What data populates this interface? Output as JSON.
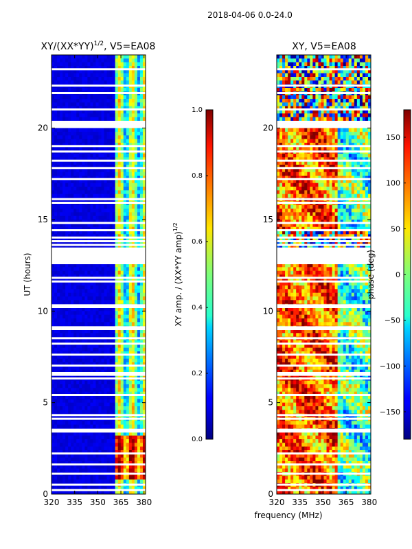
{
  "figure": {
    "suptitle": "2018-04-06 0.0-24.0",
    "xlabel_shared": "frequency (MHz)"
  },
  "chart_data": [
    {
      "type": "heatmap",
      "title_prefix": "XY/(XX*YY)",
      "title_exponent": "1/2",
      "title_suffix": ", V5=EA08",
      "ylabel": "UT (hours)",
      "x_range": [
        320,
        381
      ],
      "x_ticks": [
        320,
        335,
        350,
        365,
        380
      ],
      "y_range": [
        0,
        24
      ],
      "y_ticks": [
        0,
        5,
        10,
        15,
        20
      ],
      "colorbar": {
        "label_prefix": "XY amp. / (XX*YY amp)",
        "label_exponent": "1/2",
        "range": [
          0.0,
          1.0
        ],
        "ticks": [
          "0.0",
          "0.2",
          "0.4",
          "0.6",
          "0.8",
          "1.0"
        ],
        "colormap": "jet"
      },
      "blank_hours": [
        0.2,
        0.5,
        1.1,
        1.6,
        2.2,
        3.4,
        3.5,
        4.1,
        4.3,
        5.4,
        6.3,
        6.5,
        6.6,
        7.0,
        7.6,
        8.2,
        8.5,
        9.0,
        9.1,
        10.2,
        10.3,
        11.6,
        11.8,
        12.6,
        12.9,
        13.1,
        13.4,
        13.6,
        13.8,
        14.0,
        14.4,
        14.8,
        15.9,
        16.1,
        17.2,
        17.8,
        18.2,
        18.7,
        19.0,
        20.1,
        20.3,
        21.0,
        21.9,
        22.3,
        23.2
      ]
    },
    {
      "type": "heatmap",
      "title": "XY, V5=EA08",
      "x_range": [
        320,
        381
      ],
      "x_ticks": [
        320,
        335,
        350,
        365,
        380
      ],
      "y_range": [
        0,
        24
      ],
      "y_ticks": [
        0,
        5,
        10,
        15,
        20
      ],
      "colorbar": {
        "label": "phase (deg)",
        "range": [
          -180,
          180
        ],
        "ticks": [
          "150",
          "100",
          "50",
          "0",
          "−50",
          "−100",
          "−150"
        ],
        "tick_values": [
          150,
          100,
          50,
          0,
          -50,
          -100,
          -150
        ],
        "colormap": "jet"
      },
      "blank_hours": [
        0.2,
        0.5,
        1.1,
        1.6,
        2.2,
        3.4,
        3.5,
        4.1,
        4.3,
        5.4,
        6.3,
        6.5,
        6.6,
        7.0,
        7.6,
        8.2,
        8.5,
        9.0,
        9.1,
        10.2,
        10.3,
        11.6,
        11.8,
        12.6,
        12.9,
        13.1,
        13.4,
        13.6,
        13.8,
        14.0,
        14.4,
        14.8,
        15.9,
        16.1,
        17.2,
        17.8,
        18.2,
        18.7,
        19.0,
        20.1,
        20.3,
        21.0,
        21.9,
        22.3,
        23.2
      ]
    }
  ]
}
